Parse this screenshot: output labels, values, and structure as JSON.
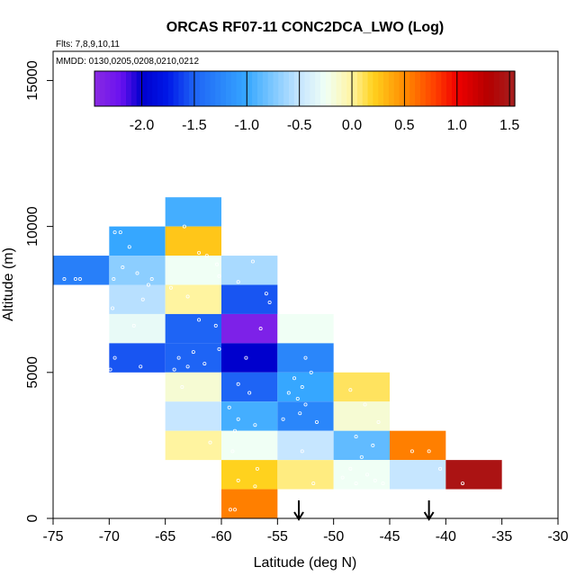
{
  "chart_data": {
    "type": "heatmap",
    "title": "ORCAS RF07-11 CONC2DCA_LWO (Log)",
    "flights_label": "Flts: 7,8,9,10,11",
    "dates_label": "MMDD: 0130,0205,0208,0210,0212",
    "xlabel": "Latitude (deg N)",
    "ylabel": "Altitude (m)",
    "xlim": [
      -75,
      -30
    ],
    "ylim": [
      0,
      16000
    ],
    "x_ticks": [
      -75,
      -70,
      -65,
      -60,
      -55,
      -50,
      -45,
      -40,
      -35,
      -30
    ],
    "x_tick_labels": [
      "-75",
      "-70",
      "-65",
      "-60",
      "-55",
      "-50",
      "-45",
      "-40",
      "-35",
      "-30"
    ],
    "y_ticks": [
      0,
      5000,
      10000,
      15000
    ],
    "y_tick_labels": [
      "0",
      "5000",
      "10000",
      "15000"
    ],
    "colorbar": {
      "range": [
        -2.45,
        1.55
      ],
      "ticks": [
        -2.0,
        -1.5,
        -1.0,
        -0.5,
        0.0,
        0.5,
        1.0,
        1.5
      ],
      "tick_labels": [
        "-2.0",
        "-1.5",
        "-1.0",
        "-0.5",
        "0.0",
        "0.5",
        "1.0",
        "1.5"
      ],
      "stops": [
        {
          "v": -2.45,
          "c": "#8a2be2"
        },
        {
          "v": -2.2,
          "c": "#6a11f0"
        },
        {
          "v": -2.0,
          "c": "#0000cd"
        },
        {
          "v": -1.75,
          "c": "#0018e8"
        },
        {
          "v": -1.5,
          "c": "#1e64f5"
        },
        {
          "v": -1.0,
          "c": "#36a7ff"
        },
        {
          "v": -0.75,
          "c": "#7ec8ff"
        },
        {
          "v": -0.5,
          "c": "#c6e6ff"
        },
        {
          "v": -0.25,
          "c": "#f0fff5"
        },
        {
          "v": 0.0,
          "c": "#fff4a0"
        },
        {
          "v": 0.2,
          "c": "#ffd21e"
        },
        {
          "v": 0.5,
          "c": "#ff8c00"
        },
        {
          "v": 0.8,
          "c": "#ff3c00"
        },
        {
          "v": 1.0,
          "c": "#f00000"
        },
        {
          "v": 1.3,
          "c": "#b40000"
        },
        {
          "v": 1.55,
          "c": "#a52020"
        }
      ]
    },
    "bin_width_deg": 5,
    "bin_height_m": 1000,
    "cells": [
      {
        "lat0": -75,
        "alt0": 8000,
        "value": -1.3
      },
      {
        "lat0": -70,
        "alt0": 9000,
        "value": -1.0
      },
      {
        "lat0": -70,
        "alt0": 8000,
        "value": -0.7
      },
      {
        "lat0": -70,
        "alt0": 7000,
        "value": -0.55
      },
      {
        "lat0": -70,
        "alt0": 6000,
        "value": -0.3
      },
      {
        "lat0": -70,
        "alt0": 5000,
        "value": -1.55
      },
      {
        "lat0": -65,
        "alt0": 10000,
        "value": -0.95
      },
      {
        "lat0": -65,
        "alt0": 9000,
        "value": 0.25
      },
      {
        "lat0": -65,
        "alt0": 8000,
        "value": -0.25
      },
      {
        "lat0": -65,
        "alt0": 7000,
        "value": 0.0
      },
      {
        "lat0": -65,
        "alt0": 6000,
        "value": -1.5
      },
      {
        "lat0": -65,
        "alt0": 5000,
        "value": -1.5
      },
      {
        "lat0": -65,
        "alt0": 4000,
        "value": -0.15
      },
      {
        "lat0": -65,
        "alt0": 3000,
        "value": -0.5
      },
      {
        "lat0": -65,
        "alt0": 2000,
        "value": 0.0
      },
      {
        "lat0": -60,
        "alt0": 8000,
        "value": -0.6
      },
      {
        "lat0": -60,
        "alt0": 7000,
        "value": -1.55
      },
      {
        "lat0": -60,
        "alt0": 6000,
        "value": -2.35
      },
      {
        "lat0": -60,
        "alt0": 5000,
        "value": -2.0
      },
      {
        "lat0": -60,
        "alt0": 4000,
        "value": -1.5
      },
      {
        "lat0": -60,
        "alt0": 3000,
        "value": -0.95
      },
      {
        "lat0": -60,
        "alt0": 2000,
        "value": -0.25
      },
      {
        "lat0": -60,
        "alt0": 1000,
        "value": 0.2
      },
      {
        "lat0": -60,
        "alt0": 0,
        "value": 0.55
      },
      {
        "lat0": -55,
        "alt0": 6000,
        "value": -0.25
      },
      {
        "lat0": -55,
        "alt0": 5000,
        "value": -1.25
      },
      {
        "lat0": -55,
        "alt0": 4000,
        "value": -1.0
      },
      {
        "lat0": -55,
        "alt0": 3000,
        "value": -1.25
      },
      {
        "lat0": -55,
        "alt0": 2000,
        "value": -0.5
      },
      {
        "lat0": -55,
        "alt0": 1000,
        "value": 0.05
      },
      {
        "lat0": -50,
        "alt0": 4000,
        "value": 0.1
      },
      {
        "lat0": -50,
        "alt0": 3000,
        "value": -0.15
      },
      {
        "lat0": -50,
        "alt0": 2000,
        "value": -0.85
      },
      {
        "lat0": -50,
        "alt0": 1000,
        "value": -0.25
      },
      {
        "lat0": -45,
        "alt0": 2000,
        "value": 0.55
      },
      {
        "lat0": -45,
        "alt0": 1000,
        "value": -0.5
      },
      {
        "lat0": -40,
        "alt0": 1000,
        "value": 1.45
      }
    ],
    "sample_points": [
      {
        "lat": -74.0,
        "alt": 8200
      },
      {
        "lat": -73.0,
        "alt": 8200
      },
      {
        "lat": -72.6,
        "alt": 8200
      },
      {
        "lat": -69.5,
        "alt": 9800
      },
      {
        "lat": -69.0,
        "alt": 9800
      },
      {
        "lat": -68.2,
        "alt": 9300
      },
      {
        "lat": -68.8,
        "alt": 8600
      },
      {
        "lat": -69.6,
        "alt": 8200
      },
      {
        "lat": -67.5,
        "alt": 8400
      },
      {
        "lat": -66.2,
        "alt": 8200
      },
      {
        "lat": -66.5,
        "alt": 8000
      },
      {
        "lat": -67.0,
        "alt": 7500
      },
      {
        "lat": -69.7,
        "alt": 7200
      },
      {
        "lat": -67.8,
        "alt": 6600
      },
      {
        "lat": -69.5,
        "alt": 5500
      },
      {
        "lat": -67.2,
        "alt": 5200
      },
      {
        "lat": -69.9,
        "alt": 5100
      },
      {
        "lat": -63.3,
        "alt": 10000
      },
      {
        "lat": -62.0,
        "alt": 9100
      },
      {
        "lat": -61.3,
        "alt": 9000
      },
      {
        "lat": -60.4,
        "alt": 8700
      },
      {
        "lat": -60.2,
        "alt": 8300
      },
      {
        "lat": -63.0,
        "alt": 7600
      },
      {
        "lat": -64.5,
        "alt": 7900
      },
      {
        "lat": -62.0,
        "alt": 6800
      },
      {
        "lat": -60.5,
        "alt": 6600
      },
      {
        "lat": -60.2,
        "alt": 5800
      },
      {
        "lat": -63.8,
        "alt": 5500
      },
      {
        "lat": -63.0,
        "alt": 5200
      },
      {
        "lat": -62.5,
        "alt": 5700
      },
      {
        "lat": -61.5,
        "alt": 5300
      },
      {
        "lat": -64.2,
        "alt": 5100
      },
      {
        "lat": -57.2,
        "alt": 8800
      },
      {
        "lat": -58.5,
        "alt": 8100
      },
      {
        "lat": -56.0,
        "alt": 7700
      },
      {
        "lat": -55.7,
        "alt": 7400
      },
      {
        "lat": -56.5,
        "alt": 6500
      },
      {
        "lat": -57.8,
        "alt": 5500
      },
      {
        "lat": -58.5,
        "alt": 4600
      },
      {
        "lat": -57.5,
        "alt": 4300
      },
      {
        "lat": -59.3,
        "alt": 3800
      },
      {
        "lat": -58.5,
        "alt": 3400
      },
      {
        "lat": -57.0,
        "alt": 3200
      },
      {
        "lat": -58.8,
        "alt": 3000
      },
      {
        "lat": -59.0,
        "alt": 2300
      },
      {
        "lat": -56.8,
        "alt": 1700
      },
      {
        "lat": -58.5,
        "alt": 1300
      },
      {
        "lat": -57.0,
        "alt": 1100
      },
      {
        "lat": -58.8,
        "alt": 300
      },
      {
        "lat": -59.2,
        "alt": 300
      },
      {
        "lat": -52.5,
        "alt": 5500
      },
      {
        "lat": -52.0,
        "alt": 5000
      },
      {
        "lat": -53.5,
        "alt": 4800
      },
      {
        "lat": -52.8,
        "alt": 4500
      },
      {
        "lat": -54.0,
        "alt": 4300
      },
      {
        "lat": -53.2,
        "alt": 4100
      },
      {
        "lat": -52.5,
        "alt": 3900
      },
      {
        "lat": -53.0,
        "alt": 3600
      },
      {
        "lat": -54.5,
        "alt": 3400
      },
      {
        "lat": -51.5,
        "alt": 3300
      },
      {
        "lat": -52.8,
        "alt": 2300
      },
      {
        "lat": -51.8,
        "alt": 1200
      },
      {
        "lat": -48.5,
        "alt": 4400
      },
      {
        "lat": -47.2,
        "alt": 3900
      },
      {
        "lat": -46.0,
        "alt": 3300
      },
      {
        "lat": -48.0,
        "alt": 2800
      },
      {
        "lat": -46.5,
        "alt": 2500
      },
      {
        "lat": -47.5,
        "alt": 2100
      },
      {
        "lat": -48.5,
        "alt": 1700
      },
      {
        "lat": -47.0,
        "alt": 1500
      },
      {
        "lat": -49.2,
        "alt": 1400
      },
      {
        "lat": -48.0,
        "alt": 1200
      },
      {
        "lat": -46.3,
        "alt": 1300
      },
      {
        "lat": -45.6,
        "alt": 1200
      },
      {
        "lat": -43.0,
        "alt": 2300
      },
      {
        "lat": -41.5,
        "alt": 2300
      },
      {
        "lat": -40.5,
        "alt": 1700
      },
      {
        "lat": -38.5,
        "alt": 1200
      },
      {
        "lat": -59.5,
        "alt": 9500
      },
      {
        "lat": -63.5,
        "alt": 4500
      },
      {
        "lat": -61.0,
        "alt": 2600
      }
    ],
    "arrows_lat": [
      -53.1,
      -41.5
    ]
  }
}
